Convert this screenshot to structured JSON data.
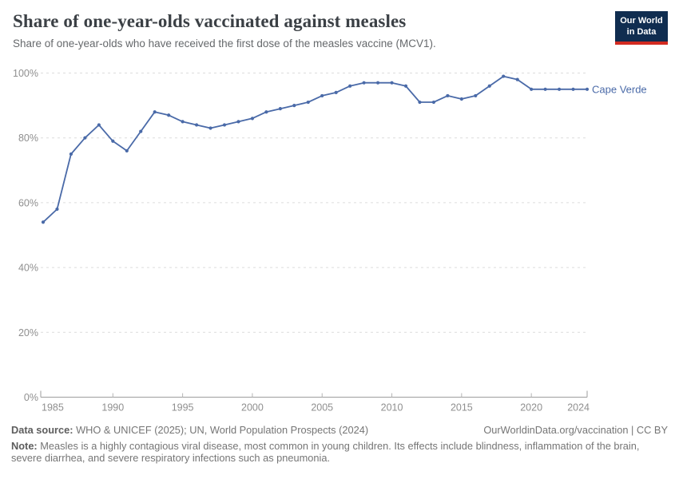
{
  "header": {
    "title": "Share of one-year-olds vaccinated against measles",
    "subtitle": "Share of one-year-olds who have received the first dose of the measles vaccine (MCV1)."
  },
  "logo": {
    "line1": "Our World",
    "line2": "in Data"
  },
  "colors": {
    "series_blue": "#4a6aa8",
    "logo_navy": "#102d50",
    "logo_red": "#d32b21",
    "gridline": "#dcdcdc",
    "axis_line": "#9e9e9e",
    "tick_label": "#8f8f8f"
  },
  "chart_data": {
    "type": "line",
    "title": "Share of one-year-olds vaccinated against measles",
    "xlabel": "",
    "ylabel": "",
    "x": [
      1985,
      1986,
      1987,
      1988,
      1989,
      1990,
      1991,
      1992,
      1993,
      1994,
      1995,
      1996,
      1997,
      1998,
      1999,
      2000,
      2001,
      2002,
      2003,
      2004,
      2005,
      2006,
      2007,
      2008,
      2009,
      2010,
      2011,
      2012,
      2013,
      2014,
      2015,
      2016,
      2017,
      2018,
      2019,
      2020,
      2021,
      2022,
      2023,
      2024
    ],
    "series": [
      {
        "name": "Cape Verde",
        "color": "#4a6aa8",
        "values": [
          54,
          58,
          75,
          80,
          84,
          79,
          76,
          82,
          88,
          87,
          85,
          84,
          83,
          84,
          85,
          86,
          88,
          89,
          90,
          91,
          93,
          94,
          96,
          97,
          97,
          97,
          96,
          91,
          91,
          93,
          92,
          93,
          96,
          99,
          98,
          95,
          95,
          95,
          95,
          95
        ]
      }
    ],
    "ylim": [
      0,
      100
    ],
    "yticks": [
      0,
      20,
      40,
      60,
      80,
      100
    ],
    "ytick_suffix": "%",
    "xticks": [
      1985,
      1990,
      1995,
      2000,
      2005,
      2010,
      2015,
      2020,
      2024
    ],
    "grid": true,
    "legend_position": "label-right-of-line"
  },
  "footer": {
    "source_label": "Data source:",
    "source_text": " WHO & UNICEF (2025); UN, World Population Prospects (2024)",
    "rights": "OurWorldinData.org/vaccination | CC BY",
    "note_label": "Note:",
    "note_text": " Measles is a highly contagious viral disease, most common in young children. Its effects include blindness, inflammation of the brain, severe diarrhea, and severe respiratory infections such as pneumonia."
  }
}
